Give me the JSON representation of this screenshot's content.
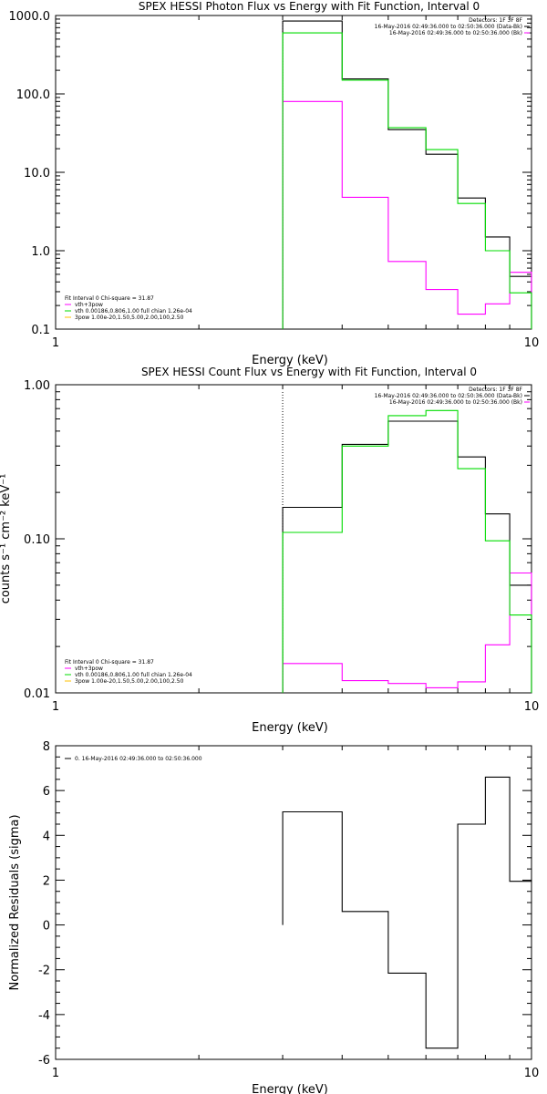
{
  "colors": {
    "observed": "#000000",
    "thermal": "#ff00ff",
    "total_fit": "#00dd00",
    "power_law": "#ffc000",
    "background": "#ffffff"
  },
  "chart_data": [
    {
      "id": "photon",
      "type": "line",
      "title": "SPEX HESSI Photon Flux vs Energy with Fit Function, Interval 0",
      "xlabel": "Energy (keV)",
      "ylabel": "",
      "xscale": "log",
      "yscale": "log",
      "xlim": [
        1,
        10
      ],
      "ylim": [
        0.1,
        1000
      ],
      "xticks": [
        1,
        10
      ],
      "xtick_labels": [
        "1",
        "10"
      ],
      "yticks": [
        0.1,
        1,
        10,
        100,
        1000
      ],
      "ytick_labels": [
        "0.1",
        "1.0",
        "10.0",
        "100.0",
        "1000.0"
      ],
      "grid": false,
      "legend_position": "top-right",
      "top_legend": [
        "Detectors: 1F 3F 8F",
        "16-May-2016 02:49:36.000 to 02:50:36.000 (Data-Bk)",
        "16-May-2016 02:49:36.000 to 02:50:36.000 (Bk)"
      ],
      "fit_legend": [
        "Fit Interval 0   Chi-square = 31.87",
        "vth+3pow",
        "vth 0.00186,0.806,1.00  full chian 1.26e-04",
        "3pow 1.00e-20,1.50,5.00,2.00,100,2.50"
      ],
      "vline": 3.0,
      "edges": [
        3.0,
        4.0,
        5.0,
        6.0,
        7.0,
        8.0,
        9.0,
        10.0
      ],
      "series": [
        {
          "name": "16-May-2016 02:49:36.000 to 02:50:36.000 (Data-Bk)",
          "color": "#000000",
          "values": [
            850,
            155,
            35,
            17,
            4.7,
            1.5,
            0.47
          ]
        },
        {
          "name": "16-May-2016 02:49:36.000 to 02:50:36.000 (Bk)",
          "color": "#ff00ff",
          "values": [
            80,
            4.8,
            0.73,
            0.32,
            0.155,
            0.21,
            0.53
          ]
        },
        {
          "name": "vth+3pow",
          "color": "#00dd00",
          "values": [
            600,
            150,
            37,
            19.5,
            4.0,
            1.0,
            0.29
          ]
        }
      ]
    },
    {
      "id": "count",
      "type": "line",
      "title": "SPEX HESSI Count Flux vs Energy with Fit Function, Interval 0",
      "xlabel": "Energy (keV)",
      "ylabel": "counts s⁻¹ cm⁻² keV⁻¹",
      "xscale": "log",
      "yscale": "log",
      "xlim": [
        1,
        10
      ],
      "ylim": [
        0.01,
        1
      ],
      "xticks": [
        1,
        10
      ],
      "xtick_labels": [
        "1",
        "10"
      ],
      "yticks": [
        0.01,
        0.1,
        1
      ],
      "ytick_labels": [
        "0.01",
        "0.10",
        "1.00"
      ],
      "grid": false,
      "legend_position": "top-right",
      "top_legend": [
        "Detectors: 1F 3F 8F",
        "16-May-2016 02:49:36.000 to 02:50:36.000 (Data-Bk)",
        "16-May-2016 02:49:36.000 to 02:50:36.000 (Bk)"
      ],
      "fit_legend": [
        "Fit Interval 0   Chi-square = 31.87",
        "vth+3pow",
        "vth 0.00186,0.806,1.00  full chian 1.26e-04",
        "3pow 1.00e-20,1.50,5.00,2.00,100,2.50"
      ],
      "vline": 3.0,
      "edges": [
        3.0,
        4.0,
        5.0,
        6.0,
        7.0,
        8.0,
        9.0,
        10.0
      ],
      "series": [
        {
          "name": "16-May-2016 02:49:36.000 to 02:50:36.000 (Data-Bk)",
          "color": "#000000",
          "values": [
            0.16,
            0.41,
            0.58,
            0.58,
            0.34,
            0.145,
            0.05
          ]
        },
        {
          "name": "16-May-2016 02:49:36.000 to 02:50:36.000 (Bk)",
          "color": "#ff00ff",
          "values": [
            0.0155,
            0.012,
            0.0115,
            0.0108,
            0.0118,
            0.0205,
            0.06
          ]
        },
        {
          "name": "vth+3pow",
          "color": "#00dd00",
          "values": [
            0.11,
            0.4,
            0.63,
            0.68,
            0.285,
            0.097,
            0.032
          ]
        }
      ]
    },
    {
      "id": "residuals",
      "type": "line",
      "title": "",
      "xlabel": "Energy (keV)",
      "ylabel": "Normalized Residuals (sigma)",
      "xscale": "log",
      "yscale": "linear",
      "xlim": [
        1,
        10
      ],
      "ylim": [
        -6,
        8
      ],
      "xticks": [
        1,
        10
      ],
      "xtick_labels": [
        "1",
        "10"
      ],
      "yticks": [
        -6,
        -4,
        -2,
        0,
        2,
        4,
        6,
        8
      ],
      "ytick_labels": [
        "-6",
        "-4",
        "-2",
        "0",
        "2",
        "4",
        "6",
        "8"
      ],
      "grid": false,
      "legend_position": "top-left",
      "top_legend": [],
      "fit_legend": [
        "0. 16-May-2016 02:49:36.000 to 02:50:36.000"
      ],
      "vline": null,
      "edges": [
        3.0,
        4.0,
        5.0,
        6.0,
        7.0,
        8.0,
        9.0,
        10.0
      ],
      "series": [
        {
          "name": "0. 16-May-2016 02:49:36.000 to 02:50:36.000",
          "color": "#000000",
          "values": [
            5.05,
            0.6,
            -2.15,
            -5.5,
            4.5,
            6.6,
            1.95
          ]
        }
      ]
    }
  ]
}
